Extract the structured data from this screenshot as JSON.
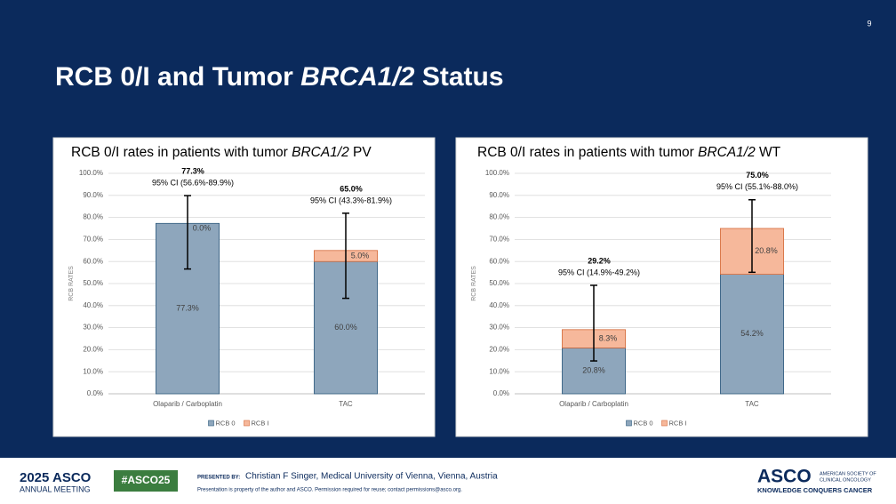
{
  "slide": {
    "number": "9",
    "title": [
      "RCB 0/I and Tumor ",
      "BRCA1/2",
      " Status"
    ]
  },
  "chart_data": [
    {
      "type": "bar",
      "stacked": true,
      "title": [
        "RCB 0/I rates in patients with tumor ",
        "BRCA1/2",
        " PV"
      ],
      "ylabel": "RCB RATES",
      "categories": [
        "Olaparib / Carboplatin",
        "TAC"
      ],
      "series": [
        {
          "name": "RCB 0",
          "color": "#8ea6bc",
          "values": [
            77.3,
            60.0
          ],
          "value_labels": [
            "77.3%",
            "60.0%"
          ]
        },
        {
          "name": "RCB I",
          "color": "#f6b89b",
          "values": [
            0.0,
            5.0
          ],
          "value_labels": [
            "0.0%",
            "5.0%"
          ]
        }
      ],
      "totals": [
        77.3,
        65.0
      ],
      "total_labels": [
        "77.3%",
        "65.0%"
      ],
      "ci_low": [
        56.6,
        43.3
      ],
      "ci_high": [
        89.9,
        81.9
      ],
      "ci_labels": [
        "95% CI (56.6%-89.9%)",
        "95% CI (43.3%-81.9%)"
      ],
      "ylim": [
        0,
        100
      ],
      "yticks": [
        {
          "value": 0,
          "label": "0.0%"
        },
        {
          "value": 10,
          "label": "10.0%"
        },
        {
          "value": 20,
          "label": "20.0%"
        },
        {
          "value": 30,
          "label": "30.0%"
        },
        {
          "value": 40,
          "label": "40.0%"
        },
        {
          "value": 50,
          "label": "50.0%"
        },
        {
          "value": 60,
          "label": "60.0%"
        },
        {
          "value": 70,
          "label": "70.0%"
        },
        {
          "value": 80,
          "label": "80.0%"
        },
        {
          "value": 90,
          "label": "90.0%"
        },
        {
          "value": 100,
          "label": "100.0%"
        }
      ],
      "grid": true,
      "legend": "bottom"
    },
    {
      "type": "bar",
      "stacked": true,
      "title": [
        "RCB 0/I rates in patients with tumor ",
        "BRCA1/2",
        " WT"
      ],
      "ylabel": "RCB RATES",
      "categories": [
        "Olaparib / Carboplatin",
        "TAC"
      ],
      "series": [
        {
          "name": "RCB 0",
          "color": "#8ea6bc",
          "values": [
            20.8,
            54.2
          ],
          "value_labels": [
            "20.8%",
            "54.2%"
          ]
        },
        {
          "name": "RCB I",
          "color": "#f6b89b",
          "values": [
            8.3,
            20.8
          ],
          "value_labels": [
            "8.3%",
            "20.8%"
          ]
        }
      ],
      "totals": [
        29.2,
        75.0
      ],
      "total_labels": [
        "29.2%",
        "75.0%"
      ],
      "ci_low": [
        14.9,
        55.1
      ],
      "ci_high": [
        49.2,
        88.0
      ],
      "ci_labels": [
        "95% CI (14.9%-49.2%)",
        "95% CI (55.1%-88.0%)"
      ],
      "ylim": [
        0,
        100
      ],
      "yticks": [
        {
          "value": 0,
          "label": "0.0%"
        },
        {
          "value": 10,
          "label": "10.0%"
        },
        {
          "value": 20,
          "label": "20.0%"
        },
        {
          "value": 30,
          "label": "30.0%"
        },
        {
          "value": 40,
          "label": "40.0%"
        },
        {
          "value": 50,
          "label": "50.0%"
        },
        {
          "value": 60,
          "label": "60.0%"
        },
        {
          "value": 70,
          "label": "70.0%"
        },
        {
          "value": 80,
          "label": "80.0%"
        },
        {
          "value": 90,
          "label": "90.0%"
        },
        {
          "value": 100,
          "label": "100.0%"
        }
      ],
      "grid": true,
      "legend": "bottom"
    }
  ],
  "footer": {
    "meeting_year": "2025 ASCO",
    "meeting_name": "ANNUAL MEETING",
    "hashtag": "#ASCO25",
    "presented_by": "PRESENTED BY:",
    "presenter": "Christian F Singer, Medical University of Vienna, Vienna, Austria",
    "notice": "Presentation is property of the author and ASCO. Permission required for reuse; contact permissions@asco.org.",
    "logo": "ASCO",
    "society": [
      "AMERICAN SOCIETY OF",
      "CLINICAL ONCOLOGY"
    ],
    "tagline": "KNOWLEDGE CONQUERS CANCER"
  }
}
